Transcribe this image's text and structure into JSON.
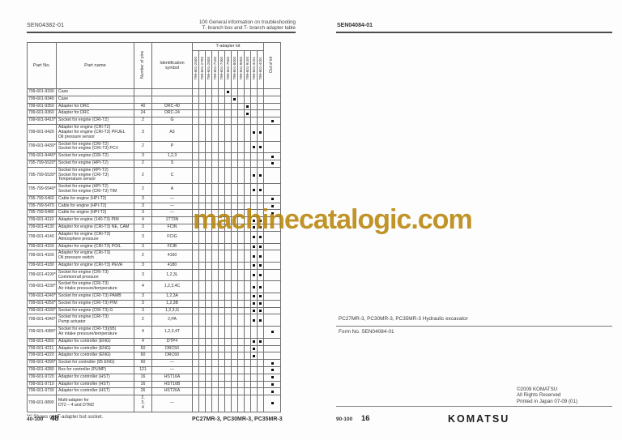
{
  "watermark": {
    "text": "machinecatalogic.com",
    "color": "#b8860b"
  },
  "left_page": {
    "doc_no": "SEN04382-01",
    "header_line1": "100 General information on troubleshooting",
    "header_line2": "T- branch box and T- branch adapter table",
    "footnote": "\"*\" Shows not T-adapter but socket.",
    "footer": {
      "section": "40-100",
      "page": "48",
      "model": "PC27MR-3, PC30MR-3, PC35MR-3"
    },
    "table": {
      "headers": {
        "part_no": "Part No.",
        "part_name": "Part name",
        "pins": "Number of pins",
        "symbol": "Identification symbol",
        "kit_group": "T-adapter kit",
        "out_of_kit": "Out of kit"
      },
      "kit_columns": [
        "799-601-2500",
        "799-601-2700",
        "799-601-2800",
        "799-601-7100",
        "799-601-7400",
        "799-601-7500",
        "799-601-8000",
        "799-601-9000",
        "799-601-9100",
        "799-601-4101",
        "799-601-4201"
      ],
      "rows": [
        {
          "part_no": "799-601-9330",
          "name": "Case",
          "pins": "",
          "symbol": "",
          "kits": [
            5
          ],
          "out": false
        },
        {
          "part_no": "799-601-9340",
          "name": "Case",
          "pins": "",
          "symbol": "",
          "kits": [
            6
          ],
          "out": false
        },
        {
          "part_no": "799-601-9350",
          "name": "Adapter for DRC",
          "pins": "40",
          "symbol": "DRC-40",
          "kits": [
            8
          ],
          "out": false
        },
        {
          "part_no": "799-601-9360",
          "name": "Adapter for DRC",
          "pins": "24",
          "symbol": "DRC-24",
          "kits": [
            8
          ],
          "out": false
        },
        {
          "part_no": "799-601-9410*",
          "name": "Socket for engine (CRI-T2)",
          "pins": "2",
          "symbol": "G",
          "kits": [],
          "out": true
        },
        {
          "part_no": "799-601-9420",
          "name": "Adapter for engine (CRI-T2)\nAdapter for engine (CRI-T3) PFUEL\nOil pressure sensor",
          "pins": "3",
          "symbol": "A3",
          "kits": [
            9,
            10
          ],
          "out": false
        },
        {
          "part_no": "799-601-9430*",
          "name": "Socket for engine (CRI-T2)\nSocket for engine (CRI-T3) PCV",
          "pins": "2",
          "symbol": "P",
          "kits": [
            9,
            10
          ],
          "out": false
        },
        {
          "part_no": "799-601-9440*",
          "name": "Socket for engine (CRI-T2)",
          "pins": "3",
          "symbol": "1,2,3",
          "kits": [],
          "out": true
        },
        {
          "part_no": "795-799-5520*",
          "name": "Socket for engine (HPI-T2)",
          "pins": "2",
          "symbol": "S",
          "kits": [],
          "out": true
        },
        {
          "part_no": "795-799-5530*",
          "name": "Socket for engine (HPI-T2)\nSocket for engine (CRI-T3)\nTemperature sensor",
          "pins": "2",
          "symbol": "C",
          "kits": [
            9,
            10
          ],
          "out": false
        },
        {
          "part_no": "795-799-5540*",
          "name": "Socket for engine (HPI-T2)\nSocket for engine (CRI-T3) TIM",
          "pins": "2",
          "symbol": "A",
          "kits": [
            9,
            10
          ],
          "out": false
        },
        {
          "part_no": "795-799-5460",
          "name": "Cable for engine (HPI-T2)",
          "pins": "3",
          "symbol": "—",
          "kits": [],
          "out": true
        },
        {
          "part_no": "795-799-5470",
          "name": "Cable for engine (HPI-T2)",
          "pins": "3",
          "symbol": "—",
          "kits": [],
          "out": true
        },
        {
          "part_no": "795-799-5480",
          "name": "Cable for engine (HPI-T2)",
          "pins": "3",
          "symbol": "—",
          "kits": [],
          "out": true
        },
        {
          "part_no": "799-601-4110",
          "name": "Adapter for engine (140-T3) PIM",
          "pins": "4",
          "symbol": "1TT3N",
          "kits": [
            9,
            10
          ],
          "out": false
        },
        {
          "part_no": "799-601-4130",
          "name": "Adapter for engine (CRI-T3) NE, CAM",
          "pins": "3",
          "symbol": "FCIN",
          "kits": [
            9,
            10
          ],
          "out": false
        },
        {
          "part_no": "799-601-4140",
          "name": "Adapter for engine (CRI-T3)\nAtmosphere pressure",
          "pins": "3",
          "symbol": "FCIG",
          "kits": [
            9,
            10
          ],
          "out": false
        },
        {
          "part_no": "799-601-4150",
          "name": "Adapter for engine (CRI-T3) POIL",
          "pins": "3",
          "symbol": "FCIB",
          "kits": [
            9,
            10
          ],
          "out": false
        },
        {
          "part_no": "799-601-4160",
          "name": "Adapter for engine (CRI-T3)\nOil pressure switch",
          "pins": "2",
          "symbol": "4160",
          "kits": [
            9,
            10
          ],
          "out": false
        },
        {
          "part_no": "799-601-4180",
          "name": "Adapter for engine (CRI-T3) PEVA",
          "pins": "3",
          "symbol": "4180",
          "kits": [
            9,
            10
          ],
          "out": false
        },
        {
          "part_no": "799-601-4190*",
          "name": "Socket for engine (CRI-T3)\nCommonrail pressure",
          "pins": "3",
          "symbol": "1,2,3L",
          "kits": [
            9,
            10
          ],
          "out": false
        },
        {
          "part_no": "799-601-4230*",
          "name": "Socket for engine (CRI-T3)\nAir intake pressure/temperature",
          "pins": "4",
          "symbol": "1,2,3,4C",
          "kits": [
            9,
            10
          ],
          "out": false
        },
        {
          "part_no": "799-601-4240*",
          "name": "Socket for engine (CRI-T3) PAMB",
          "pins": "3",
          "symbol": "1,2,3A",
          "kits": [
            9,
            10
          ],
          "out": false
        },
        {
          "part_no": "799-601-4250*",
          "name": "Socket for engine (CRI-T3) PIM",
          "pins": "3",
          "symbol": "1,2,3B",
          "kits": [
            9,
            10
          ],
          "out": false
        },
        {
          "part_no": "799-601-4330*",
          "name": "Socket for engine (CRI-T3) G",
          "pins": "3",
          "symbol": "1,2,3,G",
          "kits": [
            9,
            10
          ],
          "out": false
        },
        {
          "part_no": "799-601-4340*",
          "name": "Socket for engine (CRI-T3)\nPump actuator",
          "pins": "2",
          "symbol": "2,PA",
          "kits": [
            9,
            10
          ],
          "out": false
        },
        {
          "part_no": "799-601-4380*",
          "name": "Socket for engine (CRI-T3)(95)\nAir intake pressure/temperature",
          "pins": "4",
          "symbol": "1,2,3,4T",
          "kits": [],
          "out": true
        },
        {
          "part_no": "799-601-4260",
          "name": "Adapter for controller (ENG)",
          "pins": "4",
          "symbol": "DTP4",
          "kits": [
            9,
            10
          ],
          "out": false
        },
        {
          "part_no": "799-601-4211",
          "name": "Adapter for controller (ENG)",
          "pins": "50",
          "symbol": "DRC50",
          "kits": [
            9
          ],
          "out": false
        },
        {
          "part_no": "799-601-4220",
          "name": "Adapter for controller (ENG)",
          "pins": "60",
          "symbol": "DRC60",
          "kits": [
            9
          ],
          "out": false
        },
        {
          "part_no": "799-601-4290*",
          "name": "Socket for controller (95 ENG)",
          "pins": "60",
          "symbol": "—",
          "kits": [],
          "out": true
        },
        {
          "part_no": "799-601-4280",
          "name": "Box for controller (PUMP)",
          "pins": "121",
          "symbol": "—",
          "kits": [],
          "out": true
        },
        {
          "part_no": "799-601-9720",
          "name": "Adapter for controller (HST)",
          "pins": "16",
          "symbol": "HST16A",
          "kits": [],
          "out": true
        },
        {
          "part_no": "799-601-9710",
          "name": "Adapter for controller (HST)",
          "pins": "16",
          "symbol": "HST16B",
          "kits": [],
          "out": true
        },
        {
          "part_no": "799-601-9730",
          "name": "Adapter for controller (HST)",
          "pins": "26",
          "symbol": "HST26A",
          "kits": [],
          "out": true
        },
        {
          "part_no": "799-601-9890",
          "name": "Multi-adapter for\nDT2 – 4 and DTM2",
          "pins": "2,\n3,\n4",
          "symbol": "—",
          "kits": [],
          "out": true
        }
      ]
    }
  },
  "right_page": {
    "doc_no": "SEN04084-01",
    "model_line": "PC27MR-3, PC30MR-3, PC35MR-3 Hydraulic excavator",
    "form_line": "Form No.  SEN04084-01",
    "copyright": [
      "©2009 KOMATSU",
      "All Rights Reserved",
      "Printed in Japan 07-09 (01)"
    ],
    "footer": {
      "section": "90-100",
      "page": "16",
      "logo": "KOMATSU"
    }
  }
}
